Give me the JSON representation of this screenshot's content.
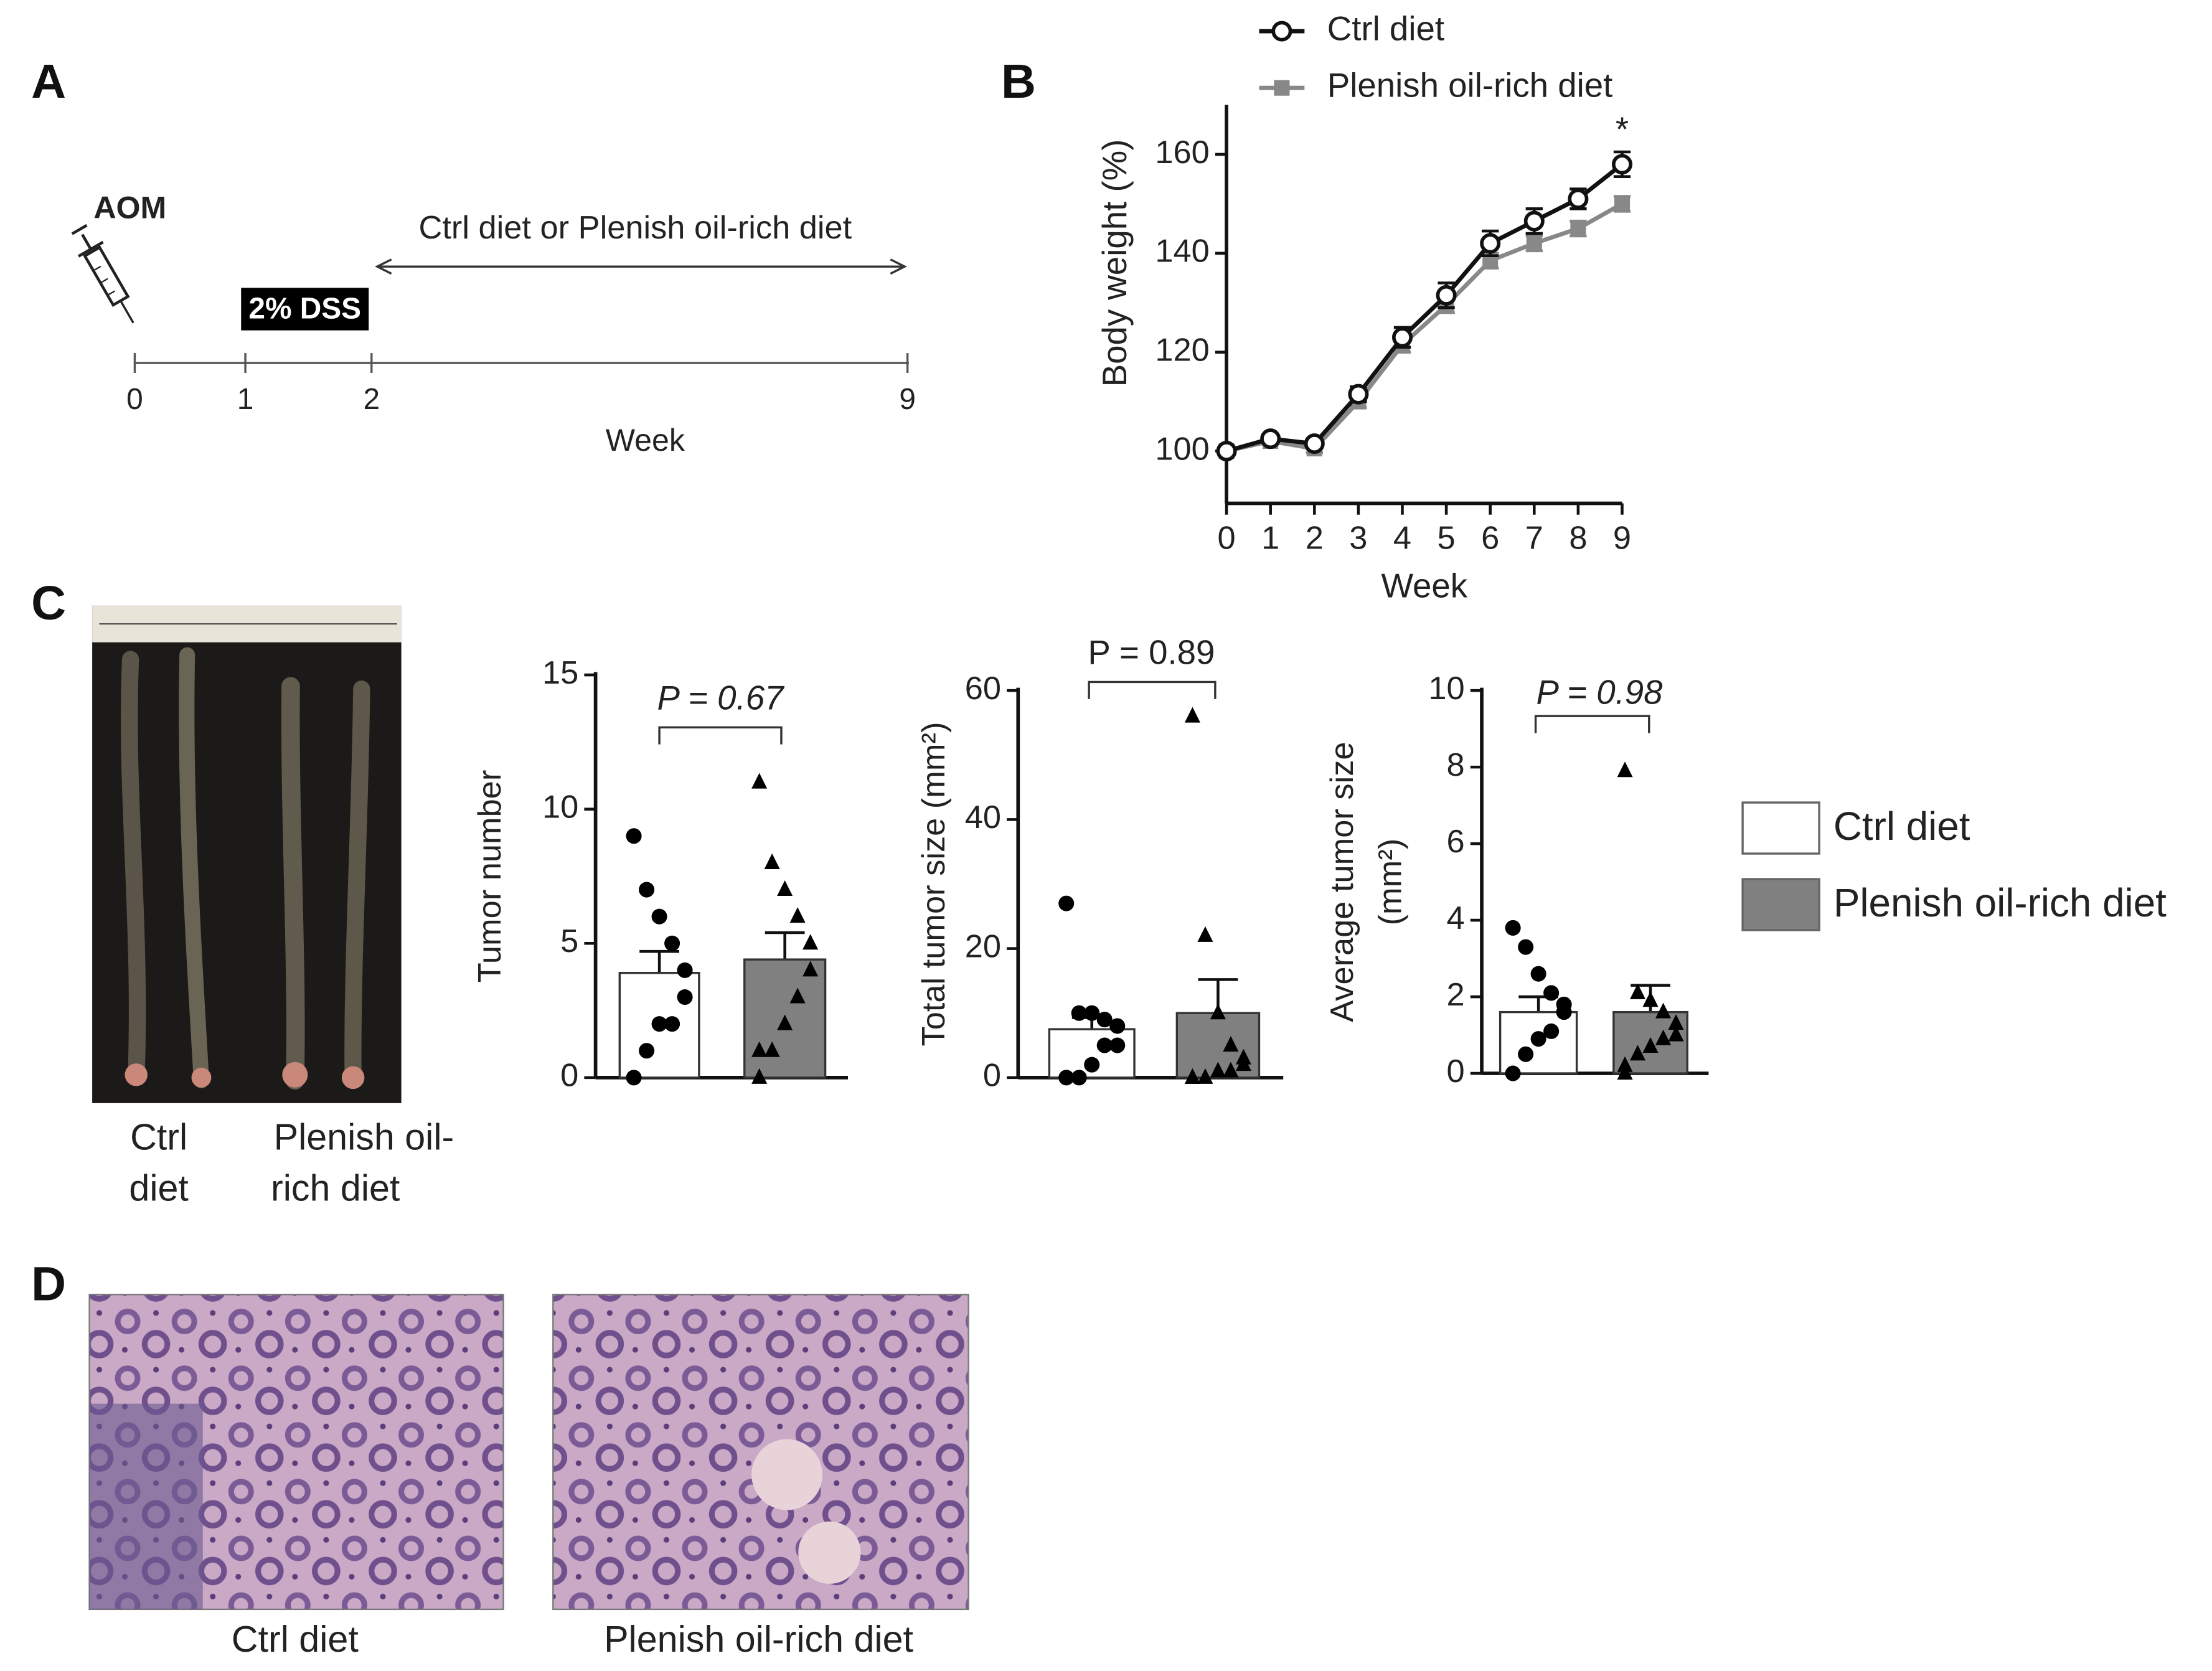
{
  "panel_letters": [
    "A",
    "B",
    "C",
    "D"
  ],
  "timeline": {
    "agent": "AOM",
    "treatment": "2% DSS",
    "diet": "Ctrl diet or Plenish oil-rich diet",
    "weeks": [
      0,
      1,
      2,
      9
    ],
    "axis_label": "Week"
  },
  "photo_captions": {
    "colon": [
      [
        "Ctrl",
        "diet"
      ],
      [
        "Plenish oil-",
        "rich diet"
      ]
    ],
    "histology": [
      "Ctrl diet",
      "Plenish oil-rich diet"
    ]
  },
  "legend_c": {
    "items": [
      {
        "name": "Ctrl diet",
        "color": "#ffffff"
      },
      {
        "name": "Plenish oil-rich diet",
        "color": "#808080"
      }
    ]
  },
  "chart_data": [
    {
      "type": "line",
      "x_label": "Week",
      "y_label": "Body weight (%)",
      "x": [
        0,
        1,
        2,
        3,
        4,
        5,
        6,
        7,
        8,
        9
      ],
      "xlim": [
        0,
        9
      ],
      "xticks": [
        0,
        1,
        2,
        3,
        4,
        5,
        6,
        7,
        8,
        9
      ],
      "ylim": [
        90,
        170
      ],
      "yticks": [
        100,
        120,
        140,
        160
      ],
      "annotation": "*",
      "series": [
        {
          "name": "Ctrl diet",
          "color": "#111111",
          "marker": "circle",
          "values": [
            100,
            102.5,
            101.5,
            111.5,
            123,
            131.5,
            142,
            146.5,
            151,
            158
          ],
          "errors": [
            0.5,
            0.8,
            0.8,
            1.5,
            2,
            2.5,
            2.5,
            2.5,
            2,
            2.5
          ]
        },
        {
          "name": "Plenish oil-rich diet",
          "color": "#888888",
          "marker": "square",
          "values": [
            100,
            102,
            100.5,
            110,
            121.5,
            129.5,
            138.5,
            142,
            145,
            150
          ],
          "errors": [
            0.5,
            0.6,
            0.8,
            1.2,
            1.5,
            1.5,
            1.5,
            1.5,
            1.5,
            1.5
          ]
        }
      ]
    },
    {
      "type": "bar",
      "y_label": [
        "Tumor number"
      ],
      "annotation": "P = 0.67",
      "annotation_italic": true,
      "ylim": [
        0,
        15
      ],
      "yticks": [
        0,
        5,
        10,
        15
      ],
      "values": [
        3.9,
        4.4
      ],
      "errors": [
        0.8,
        1.0
      ],
      "markers": [
        "circle",
        "triangle"
      ],
      "points": [
        [
          9,
          7,
          6,
          5,
          4,
          3,
          2,
          2,
          1,
          0
        ],
        [
          11,
          8,
          7,
          6,
          5,
          4,
          3,
          2,
          1,
          1,
          0
        ]
      ]
    },
    {
      "type": "bar",
      "y_label": [
        "Total tumor size (mm²)"
      ],
      "annotation": "P = 0.89",
      "annotation_italic": false,
      "ylim": [
        0,
        60
      ],
      "yticks": [
        0,
        20,
        40,
        60
      ],
      "values": [
        7.5,
        10
      ],
      "errors": [
        1.8,
        5.2
      ],
      "markers": [
        "circle",
        "triangle"
      ],
      "points": [
        [
          27,
          10,
          10,
          9,
          8,
          5,
          5,
          2,
          0,
          0
        ],
        [
          56,
          22,
          10,
          5,
          3,
          2,
          1,
          1,
          0,
          0,
          0
        ]
      ]
    },
    {
      "type": "bar",
      "y_label": [
        "Average tumor size",
        "(mm²)"
      ],
      "annotation": "P = 0.98",
      "annotation_italic": true,
      "ylim": [
        0,
        10
      ],
      "yticks": [
        0,
        2,
        4,
        6,
        8,
        10
      ],
      "values": [
        1.6,
        1.6
      ],
      "errors": [
        0.4,
        0.7
      ],
      "markers": [
        "circle",
        "triangle"
      ],
      "points": [
        [
          3.8,
          3.3,
          2.6,
          2.1,
          1.8,
          1.6,
          1.1,
          0.9,
          0.5,
          0
        ],
        [
          7.9,
          2.1,
          1.9,
          1.6,
          1.3,
          1.0,
          0.9,
          0.7,
          0.5,
          0.2,
          0
        ]
      ]
    }
  ]
}
